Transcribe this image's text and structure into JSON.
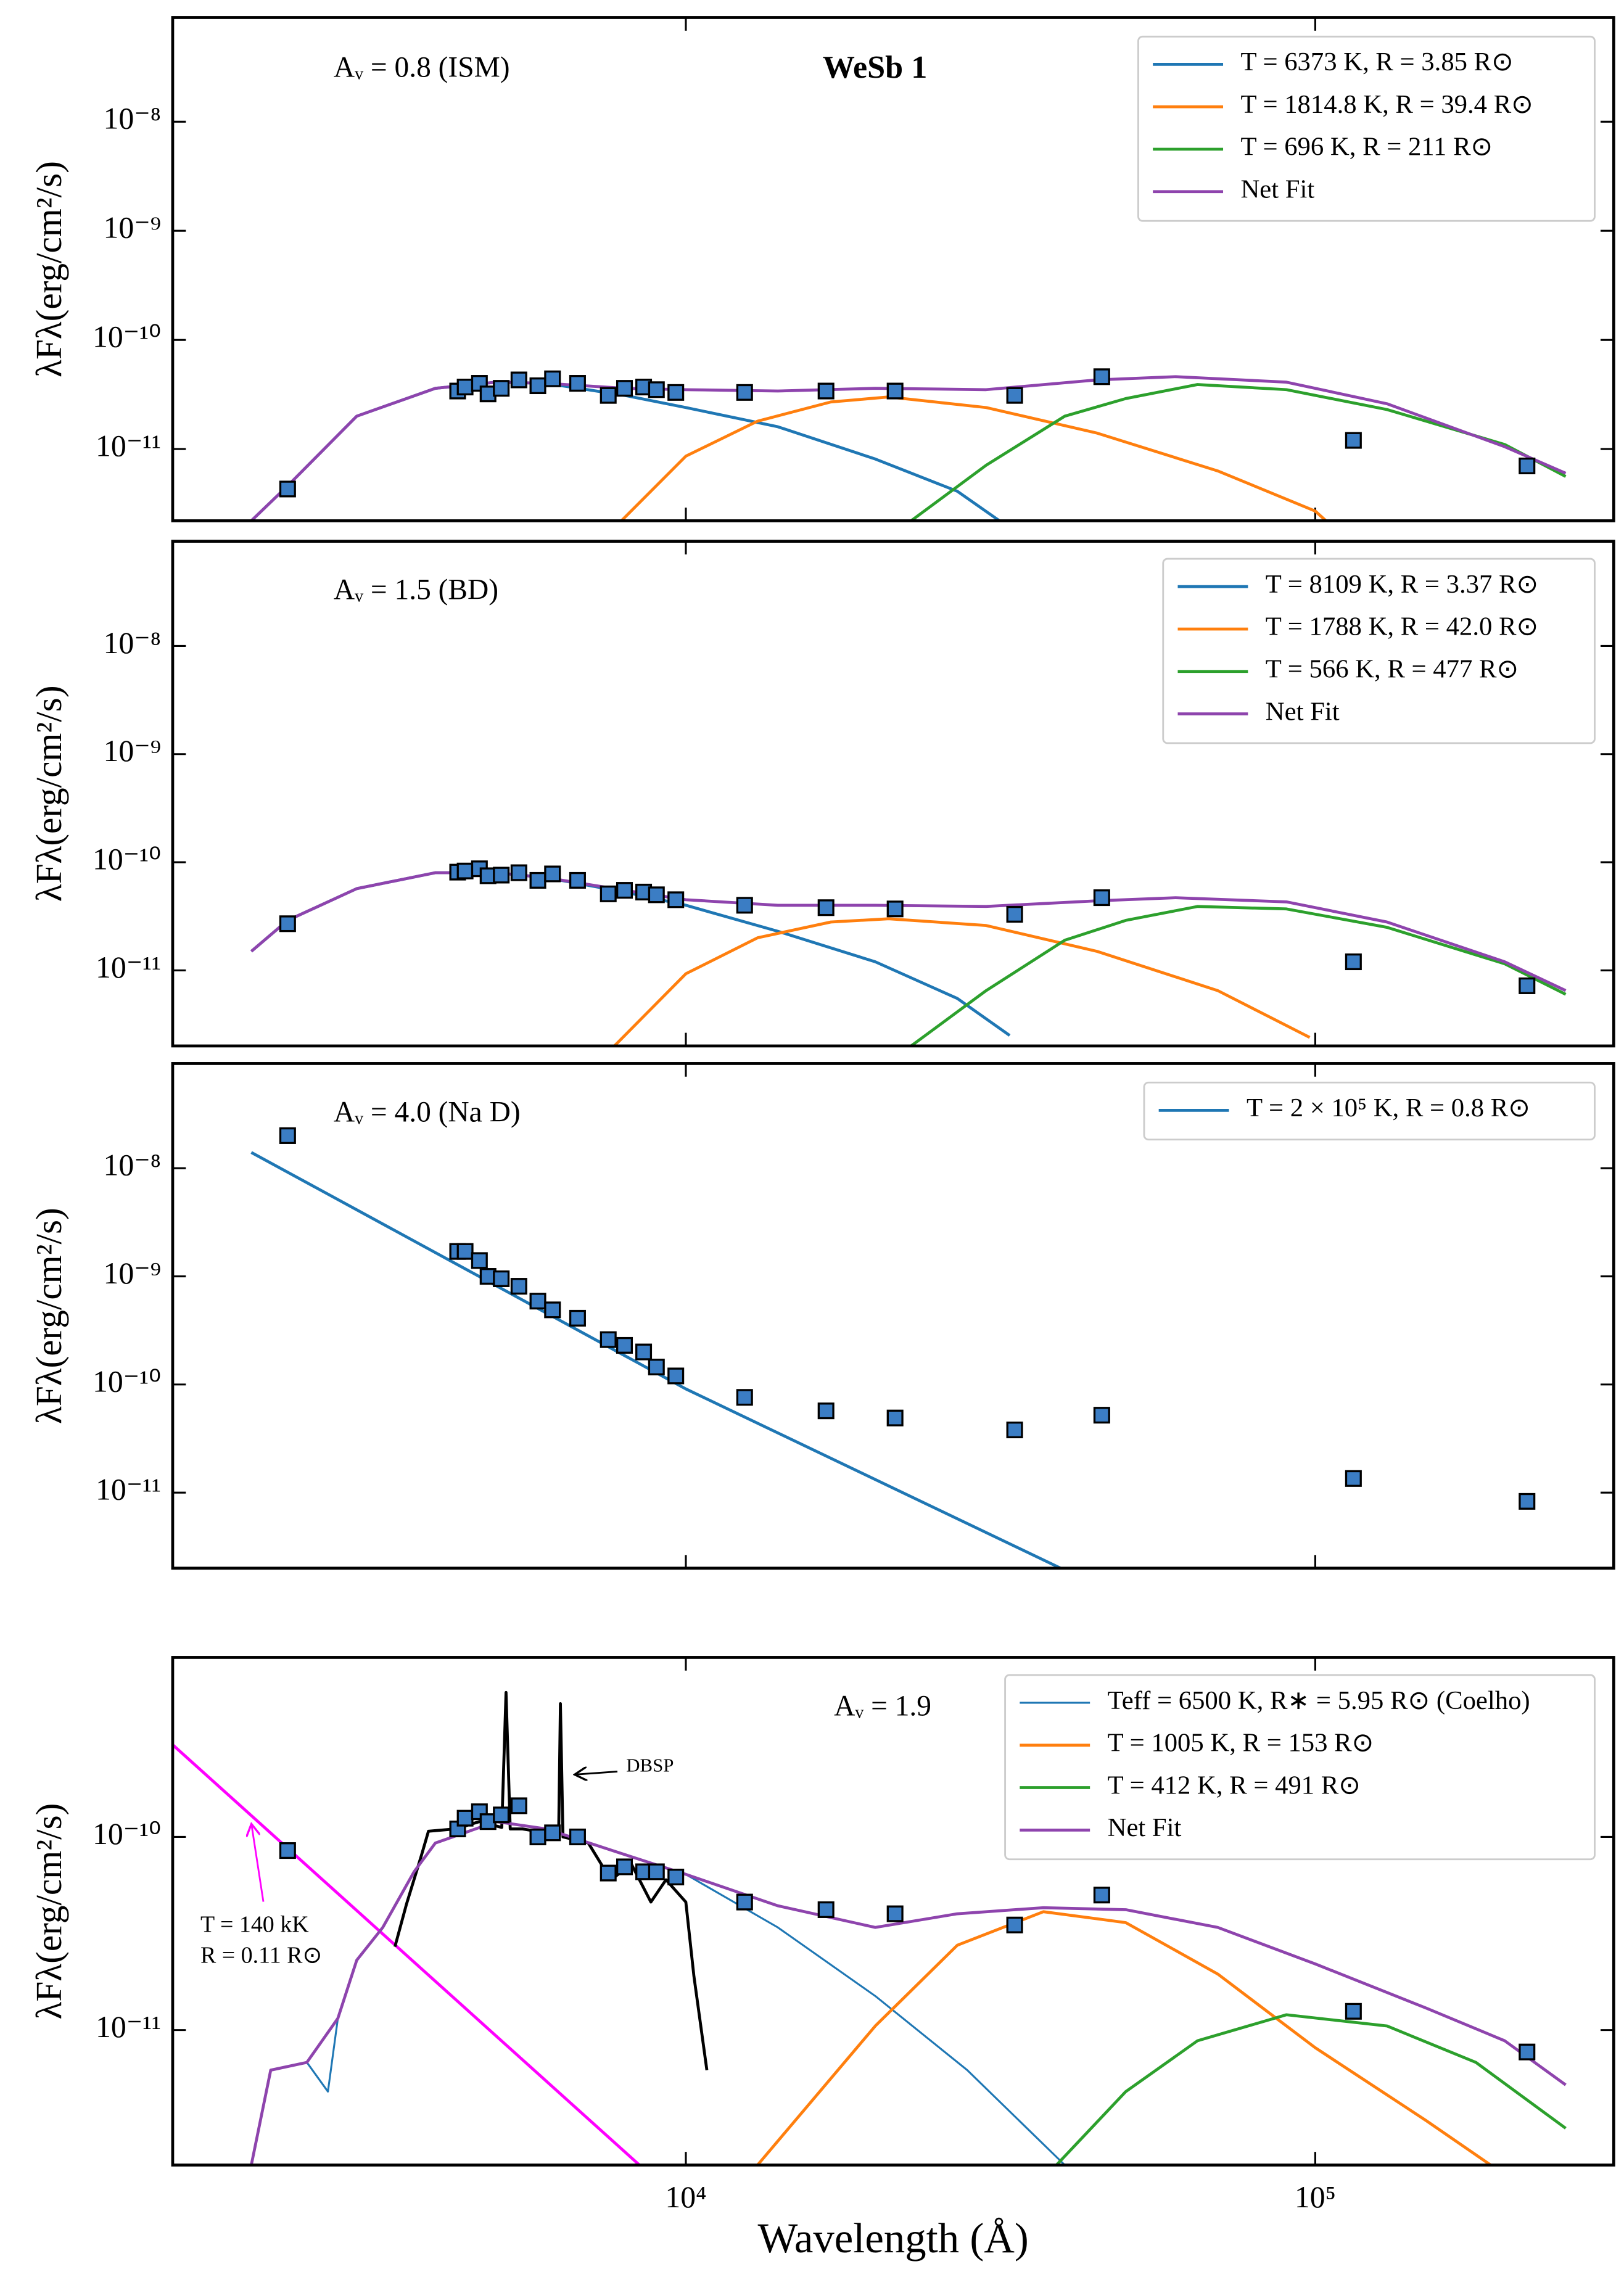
{
  "chart_data": [
    {
      "type": "line",
      "xscale": "log",
      "yscale": "log",
      "title": "WeSb 1",
      "annotations": [
        "Aᵥ = 0.8 (ISM)"
      ],
      "ylabel": "λFλ(erg/cm²/s)",
      "legend": "upper right",
      "xlim": [
        1530,
        298000
      ],
      "ylim": [
        2.2e-12,
        9e-08
      ],
      "yticks": [
        {
          "value": 1e-11,
          "label": "10⁻¹¹"
        },
        {
          "value": 1e-10,
          "label": "10⁻¹⁰"
        },
        {
          "value": 1e-09,
          "label": "10⁻⁹"
        },
        {
          "value": 1e-08,
          "label": "10⁻⁸"
        }
      ],
      "xticks": [
        10000,
        100000
      ],
      "series": [
        {
          "name": "T = 6373 K, R = 3.85 R⊙",
          "color": "#1f77b4",
          "x": [
            2040,
            2330,
            3000,
            4000,
            5000,
            6000,
            8000,
            10000,
            14000,
            20000,
            27000,
            31500
          ],
          "values": [
            2.2e-12,
            4.6e-12,
            2e-11,
            3.6e-11,
            4.1e-11,
            4e-11,
            3.1e-11,
            2.4e-11,
            1.6e-11,
            8.1e-12,
            4.1e-12,
            2.2e-12
          ]
        },
        {
          "name": "T = 1814.8 K, R = 39.4 R⊙",
          "color": "#ff7f0e",
          "x": [
            7900,
            10000,
            13000,
            17000,
            21000,
            30000,
            45000,
            70000,
            100000,
            104000
          ],
          "values": [
            2.2e-12,
            8.6e-12,
            1.8e-11,
            2.7e-11,
            3e-11,
            2.4e-11,
            1.4e-11,
            6.3e-12,
            2.7e-12,
            2.2e-12
          ]
        },
        {
          "name": "T = 696 K, R = 211 R⊙",
          "color": "#2ca02c",
          "x": [
            22800,
            30000,
            40000,
            50000,
            65000,
            90000,
            130000,
            200000,
            250000
          ],
          "values": [
            2.2e-12,
            7.1e-12,
            2e-11,
            2.9e-11,
            3.9e-11,
            3.5e-11,
            2.3e-11,
            1.1e-11,
            5.6e-12
          ]
        },
        {
          "name": "Net Fit",
          "color": "#8e44ad",
          "x": [
            2040,
            2330,
            3000,
            4000,
            5000,
            6000,
            8000,
            10000,
            14000,
            20000,
            30000,
            45000,
            60000,
            90000,
            130000,
            200000,
            250000
          ],
          "values": [
            2.2e-12,
            4.6e-12,
            2e-11,
            3.6e-11,
            4.1e-11,
            4e-11,
            3.6e-11,
            3.5e-11,
            3.4e-11,
            3.6e-11,
            3.5e-11,
            4.3e-11,
            4.6e-11,
            4.1e-11,
            2.6e-11,
            1.05e-11,
            6e-12
          ]
        }
      ],
      "points": {
        "color": "#3b7dc4",
        "x": [
          2330,
          4340,
          4460,
          4700,
          4850,
          5090,
          5430,
          5820,
          6140,
          6730,
          7530,
          7990,
          8570,
          8980,
          9640,
          12400,
          16700,
          21500,
          33300,
          45800,
          115000,
          217000
        ],
        "values": [
          4.3e-12,
          3.4e-11,
          3.7e-11,
          4e-11,
          3.2e-11,
          3.6e-11,
          4.3e-11,
          3.8e-11,
          4.4e-11,
          4e-11,
          3.1e-11,
          3.6e-11,
          3.7e-11,
          3.5e-11,
          3.3e-11,
          3.3e-11,
          3.4e-11,
          3.4e-11,
          3.1e-11,
          4.6e-11,
          1.2e-11,
          7e-12
        ]
      }
    },
    {
      "type": "line",
      "xscale": "log",
      "yscale": "log",
      "annotations": [
        "Aᵥ = 1.5 (BD)"
      ],
      "ylabel": "λFλ(erg/cm²/s)",
      "legend": "upper right",
      "xlim": [
        1530,
        298000
      ],
      "ylim": [
        2e-12,
        9.3e-08
      ],
      "yticks": [
        {
          "value": 1e-11,
          "label": "10⁻¹¹"
        },
        {
          "value": 1e-10,
          "label": "10⁻¹⁰"
        },
        {
          "value": 1e-09,
          "label": "10⁻⁹"
        },
        {
          "value": 1e-08,
          "label": "10⁻⁸"
        }
      ],
      "xticks": [
        10000,
        100000
      ],
      "series": [
        {
          "name": "T = 8109 K, R = 3.37 R⊙",
          "color": "#1f77b4",
          "x": [
            2040,
            2330,
            3000,
            4000,
            5000,
            6000,
            8000,
            10000,
            14000,
            20000,
            27000,
            32700
          ],
          "values": [
            1.5e-11,
            2.9e-11,
            5.7e-11,
            8e-11,
            8e-11,
            7.2e-11,
            5.3e-11,
            4e-11,
            2.3e-11,
            1.2e-11,
            5.5e-12,
            2.5e-12
          ]
        },
        {
          "name": "T = 1788 K, R = 42.0 R⊙",
          "color": "#ff7f0e",
          "x": [
            7700,
            10000,
            13000,
            17000,
            21000,
            30000,
            45000,
            70000,
            98000
          ],
          "values": [
            2e-12,
            9.3e-12,
            2e-11,
            2.8e-11,
            3e-11,
            2.6e-11,
            1.5e-11,
            6.5e-12,
            2.4e-12
          ]
        },
        {
          "name": "T = 566 K, R = 477 R⊙",
          "color": "#2ca02c",
          "x": [
            22800,
            30000,
            40000,
            50000,
            65000,
            90000,
            130000,
            200000,
            250000
          ],
          "values": [
            2e-12,
            6.5e-12,
            1.9e-11,
            2.9e-11,
            3.9e-11,
            3.7e-11,
            2.5e-11,
            1.15e-11,
            6e-12
          ]
        },
        {
          "name": "Net Fit",
          "color": "#8e44ad",
          "x": [
            2040,
            2330,
            3000,
            4000,
            5000,
            6000,
            8000,
            10000,
            14000,
            20000,
            30000,
            45000,
            60000,
            90000,
            130000,
            200000,
            250000
          ],
          "values": [
            1.5e-11,
            2.9e-11,
            5.7e-11,
            8e-11,
            8e-11,
            7.2e-11,
            5.5e-11,
            4.5e-11,
            4e-11,
            4e-11,
            3.9e-11,
            4.4e-11,
            4.7e-11,
            4.3e-11,
            2.8e-11,
            1.2e-11,
            6.5e-12
          ]
        }
      ],
      "points": {
        "color": "#3b7dc4",
        "x": [
          2330,
          4340,
          4460,
          4700,
          4850,
          5090,
          5430,
          5820,
          6140,
          6730,
          7530,
          7990,
          8570,
          8980,
          9640,
          12400,
          16700,
          21500,
          33300,
          45800,
          115000,
          217000
        ],
        "values": [
          2.7e-11,
          8.1e-11,
          8.3e-11,
          8.7e-11,
          7.5e-11,
          7.6e-11,
          8e-11,
          6.8e-11,
          7.8e-11,
          6.8e-11,
          5.1e-11,
          5.5e-11,
          5.3e-11,
          5e-11,
          4.5e-11,
          4e-11,
          3.8e-11,
          3.7e-11,
          3.3e-11,
          4.7e-11,
          1.2e-11,
          7.2e-12
        ]
      }
    },
    {
      "type": "line",
      "xscale": "log",
      "yscale": "log",
      "annotations": [
        "Aᵥ = 4.0 (Na D)"
      ],
      "ylabel": "λFλ(erg/cm²/s)",
      "legend": "upper right",
      "xlim": [
        1530,
        298000
      ],
      "ylim": [
        2e-12,
        9.3e-08
      ],
      "yticks": [
        {
          "value": 1e-11,
          "label": "10⁻¹¹"
        },
        {
          "value": 1e-10,
          "label": "10⁻¹⁰"
        },
        {
          "value": 1e-09,
          "label": "10⁻⁹"
        },
        {
          "value": 1e-08,
          "label": "10⁻⁸"
        }
      ],
      "xticks": [
        10000,
        100000
      ],
      "series": [
        {
          "name": "T = 2 × 10⁵ K, R = 0.8 R⊙",
          "color": "#1f77b4",
          "x": [
            2040,
            10000,
            39400
          ],
          "values": [
            1.4e-08,
            9.1e-11,
            2e-12
          ]
        }
      ],
      "points": {
        "color": "#3b7dc4",
        "x": [
          2330,
          4340,
          4460,
          4700,
          4850,
          5090,
          5430,
          5820,
          6140,
          6730,
          7530,
          7990,
          8570,
          8980,
          9640,
          12400,
          16700,
          21500,
          33300,
          45800,
          115000,
          217000
        ],
        "values": [
          2e-08,
          1.7e-09,
          1.7e-09,
          1.4e-09,
          1e-09,
          9.5e-10,
          8.1e-10,
          5.9e-10,
          4.9e-10,
          4.1e-10,
          2.6e-10,
          2.3e-10,
          2e-10,
          1.45e-10,
          1.2e-10,
          7.6e-11,
          5.7e-11,
          4.9e-11,
          3.8e-11,
          5.2e-11,
          1.35e-11,
          8.3e-12
        ]
      }
    },
    {
      "type": "line",
      "xscale": "log",
      "yscale": "log",
      "annotations": [
        "Aᵥ = 1.9",
        "DBSP",
        "T = 140 kK",
        "R = 0.11 R⊙"
      ],
      "ylabel": "λFλ(erg/cm²/s)",
      "xlabel": "Wavelength (Å)",
      "legend": "upper right",
      "xlim": [
        1530,
        298000
      ],
      "ylim": [
        2e-12,
        8.5e-10
      ],
      "yticks": [
        {
          "value": 1e-11,
          "label": "10⁻¹¹"
        },
        {
          "value": 1e-10,
          "label": "10⁻¹⁰"
        }
      ],
      "xticks": [
        {
          "value": 10000,
          "label": "10⁴"
        },
        {
          "value": 100000,
          "label": "10⁵"
        }
      ],
      "series": [
        {
          "color": "#ff00ff",
          "x": [
            1530,
            8440
          ],
          "values": [
            3e-10,
            2e-12
          ]
        },
        {
          "color": "#000000",
          "x": [
            3450,
            3600,
            3800,
            3900,
            4300,
            4700,
            5100,
            5180,
            5260,
            5500,
            6000,
            6280,
            6320,
            6380,
            7000,
            7600,
            8200,
            8800,
            9300,
            10000,
            10300,
            10800
          ],
          "values": [
            2.7e-11,
            4.5e-11,
            8e-11,
            1.07e-10,
            1.1e-10,
            1.2e-10,
            1.12e-10,
            5.6e-10,
            1.1e-10,
            1.1e-10,
            1.05e-10,
            1.05e-10,
            4.9e-10,
            1e-10,
            9.3e-11,
            6e-11,
            7.2e-11,
            4.6e-11,
            6e-11,
            4.6e-11,
            1.9e-11,
            6.2e-12
          ]
        },
        {
          "name": "Teff = 6500 K, R∗ = 5.95 R⊙ (Coelho)",
          "color": "#1f77b4",
          "width": 1.3,
          "x": [
            2040,
            2190,
            2500,
            2700,
            2800,
            3000,
            3300,
            3700,
            4000,
            5000,
            6000,
            8000,
            10000,
            14000,
            20000,
            28000,
            40000
          ],
          "values": [
            2e-12,
            6.2e-12,
            6.8e-12,
            4.8e-12,
            1.15e-11,
            2.3e-11,
            3.4e-11,
            6.6e-11,
            9.3e-11,
            1.2e-10,
            1.1e-10,
            8.1e-11,
            6.4e-11,
            3.4e-11,
            1.5e-11,
            6.2e-12,
            2e-12
          ]
        },
        {
          "name": "T = 1005 K, R = 153 R⊙",
          "color": "#ff7f0e",
          "x": [
            13000,
            20000,
            27000,
            37000,
            50000,
            70000,
            100000,
            150000,
            190000
          ],
          "values": [
            2e-12,
            1.05e-11,
            2.75e-11,
            4.1e-11,
            3.6e-11,
            1.95e-11,
            8.1e-12,
            3.4e-12,
            2e-12
          ]
        },
        {
          "name": "T = 412 K, R = 491 R⊙",
          "color": "#2ca02c",
          "x": [
            38800,
            50000,
            65000,
            90000,
            130000,
            180000,
            250000
          ],
          "values": [
            2e-12,
            4.8e-12,
            8.8e-12,
            1.2e-11,
            1.05e-11,
            6.8e-12,
            3.1e-12
          ]
        },
        {
          "name": "Net Fit",
          "color": "#8e44ad",
          "x": [
            2040,
            2190,
            2500,
            2800,
            3000,
            3300,
            3700,
            4000,
            5000,
            6000,
            8000,
            10000,
            14000,
            20000,
            27000,
            37000,
            50000,
            70000,
            100000,
            150000,
            200000,
            250000
          ],
          "values": [
            2e-12,
            6.2e-12,
            6.8e-12,
            1.15e-11,
            2.3e-11,
            3.4e-11,
            6.6e-11,
            9.3e-11,
            1.2e-10,
            1.1e-10,
            8.1e-11,
            6.4e-11,
            4.4e-11,
            3.4e-11,
            4e-11,
            4.3e-11,
            4.2e-11,
            3.4e-11,
            2.2e-11,
            1.3e-11,
            8.8e-12,
            5.2e-12
          ]
        }
      ],
      "points": {
        "color": "#3b7dc4",
        "x": [
          2330,
          4340,
          4460,
          4700,
          4850,
          5090,
          5430,
          5820,
          6140,
          6730,
          7530,
          7990,
          8570,
          8980,
          9640,
          12400,
          16700,
          21500,
          33300,
          45800,
          115000,
          217000
        ],
        "values": [
          8.5e-11,
          1.1e-10,
          1.25e-10,
          1.35e-10,
          1.2e-10,
          1.3e-10,
          1.45e-10,
          1e-10,
          1.05e-10,
          1e-10,
          6.5e-11,
          7e-11,
          6.6e-11,
          6.6e-11,
          6.2e-11,
          4.6e-11,
          4.2e-11,
          4e-11,
          3.5e-11,
          5e-11,
          1.25e-11,
          7.7e-12
        ]
      }
    }
  ]
}
